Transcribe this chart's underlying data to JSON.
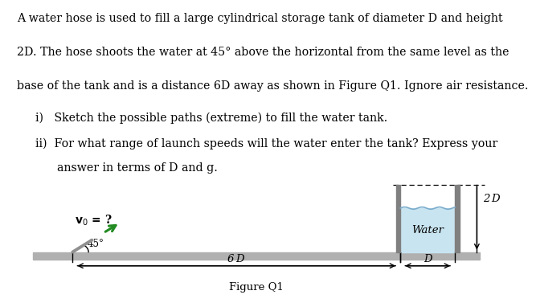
{
  "text_lines": [
    "A water hose is used to fill a large cylindrical storage tank of diameter D and height",
    "2D. The hose shoots the water at 45° above the horizontal from the same level as the",
    "base of the tank and is a distance 6D away as shown in Figure Q1. Ignore air resistance."
  ],
  "bullet_i": "i)   Sketch the possible paths (extreme) to fill the water tank.",
  "bullet_ii": "ii)  For what range of launch speeds will the water enter the tank? Express your",
  "bullet_ii_cont": "      answer in terms of D and g.",
  "figure_label": "Figure Q1",
  "label_2D": "2 D",
  "label_water": "Water",
  "label_6D": "6 D",
  "label_D": "D",
  "label_v0": "$\\mathbf{v}_0$ = ?",
  "label_45": "45°",
  "bg_color": "#ffffff",
  "ground_color": "#b0b0b0",
  "tank_wall_color": "#808080",
  "water_color": "#c8e4f0",
  "water_surface_color": "#7aaccc",
  "arrow_color": "#228B22",
  "hose_color": "#909090",
  "text_color": "#000000",
  "fontsize_main": 10.2,
  "fontsize_diagram": 9.5
}
